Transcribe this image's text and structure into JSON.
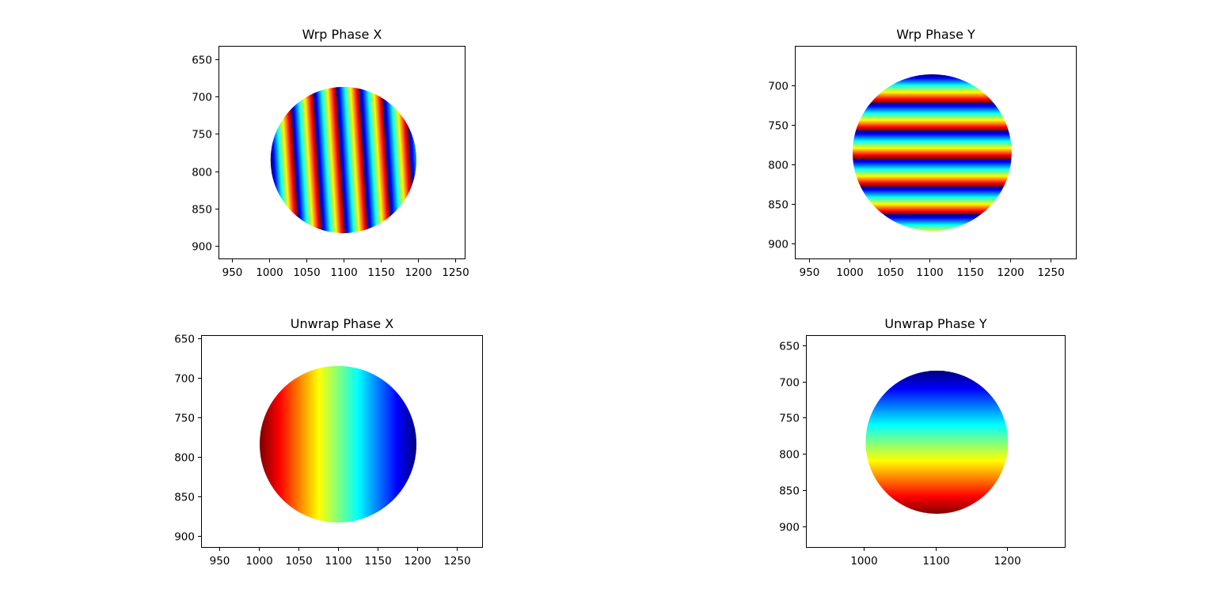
{
  "figure": {
    "background": "#ffffff",
    "colormap": "jet"
  },
  "chart_data": [
    {
      "type": "heatmap",
      "title": "Wrp Phase X",
      "pattern": "wrapped",
      "direction": "x",
      "fringe_count": 6.3,
      "fringe_tilt": 0.06,
      "circle": {
        "cx": 1100,
        "cy": 785,
        "r": 98
      },
      "xlim": [
        932,
        1264
      ],
      "ylim": [
        918,
        632
      ],
      "xticks": [
        950,
        1000,
        1050,
        1100,
        1150,
        1200,
        1250
      ],
      "yticks": [
        650,
        700,
        750,
        800,
        850,
        900
      ],
      "xtick_labels": [
        "950",
        "1000",
        "1050",
        "1100",
        "1150",
        "1200",
        "1250"
      ],
      "ytick_labels": [
        "650",
        "700",
        "750",
        "800",
        "850",
        "900"
      ]
    },
    {
      "type": "heatmap",
      "title": "Wrp Phase Y",
      "pattern": "wrapped",
      "direction": "y",
      "fringe_count": 5.6,
      "fringe_tilt": 0.005,
      "circle": {
        "cx": 1103,
        "cy": 785,
        "r": 99
      },
      "xlim": [
        932,
        1283
      ],
      "ylim": [
        920,
        650
      ],
      "xticks": [
        950,
        1000,
        1050,
        1100,
        1150,
        1200,
        1250
      ],
      "yticks": [
        700,
        750,
        800,
        850,
        900
      ],
      "xtick_labels": [
        "950",
        "1000",
        "1050",
        "1100",
        "1150",
        "1200",
        "1250"
      ],
      "ytick_labels": [
        "700",
        "750",
        "800",
        "850",
        "900"
      ]
    },
    {
      "type": "heatmap",
      "title": "Unwrap Phase X",
      "pattern": "unwrapped",
      "direction": "x",
      "reverse": true,
      "circle": {
        "cx": 1100,
        "cy": 784,
        "r": 99
      },
      "xlim": [
        927,
        1283
      ],
      "ylim": [
        915,
        646
      ],
      "xticks": [
        950,
        1000,
        1050,
        1100,
        1150,
        1200,
        1250
      ],
      "yticks": [
        650,
        700,
        750,
        800,
        850,
        900
      ],
      "xtick_labels": [
        "950",
        "1000",
        "1050",
        "1100",
        "1150",
        "1200",
        "1250"
      ],
      "ytick_labels": [
        "650",
        "700",
        "750",
        "800",
        "850",
        "900"
      ]
    },
    {
      "type": "heatmap",
      "title": "Unwrap Phase Y",
      "pattern": "unwrapped",
      "direction": "y",
      "reverse": false,
      "circle": {
        "cx": 1102,
        "cy": 784,
        "r": 99
      },
      "xlim": [
        920,
        1281
      ],
      "ylim": [
        930,
        636
      ],
      "xticks": [
        1000,
        1100,
        1200
      ],
      "yticks": [
        650,
        700,
        750,
        800,
        850,
        900
      ],
      "xtick_labels": [
        "1000",
        "1100",
        "1200"
      ],
      "ytick_labels": [
        "650",
        "700",
        "750",
        "800",
        "850",
        "900"
      ]
    }
  ]
}
